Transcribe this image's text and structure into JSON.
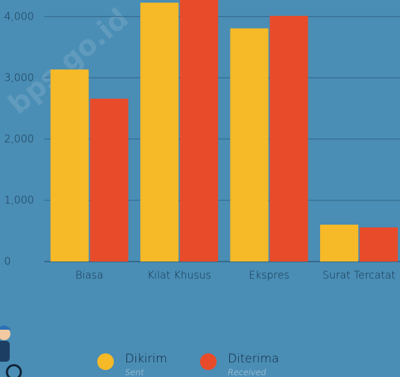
{
  "chart_data": {
    "type": "bar",
    "watermark": "bps.go.id",
    "categories": [
      "Biasa",
      "Kilat Khusus",
      "Ekspres",
      "Surat Tercatat"
    ],
    "series": [
      {
        "name": "Dikirim",
        "subtitle": "Sent",
        "color": "#f6b928",
        "values": [
          3136,
          4227,
          3807,
          602
        ]
      },
      {
        "name": "Diterima",
        "subtitle": "Received",
        "color": "#e84b2a",
        "values": [
          2659,
          4350,
          4011,
          557
        ]
      }
    ],
    "ylim": [
      0,
      4270
    ],
    "yticks": [
      0,
      {
        "value": 1000,
        "label": "1,000"
      },
      {
        "value": 2000,
        "label": "2,000"
      },
      {
        "value": 3000,
        "label": "3,000"
      },
      {
        "value": 4000,
        "label": "4,000"
      }
    ],
    "grid": true
  }
}
